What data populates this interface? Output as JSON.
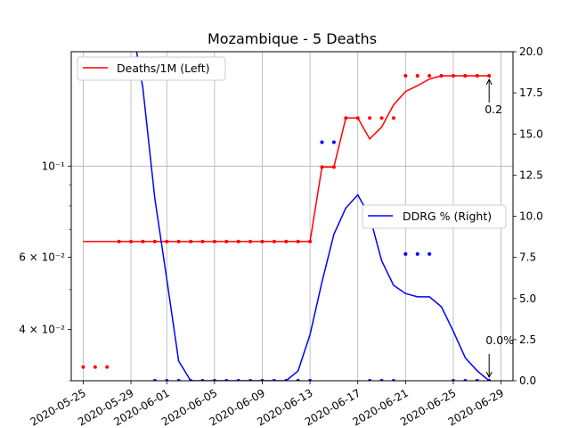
{
  "chart_data": {
    "type": "line",
    "title": "Mozambique - 5 Deaths",
    "x_dates": [
      "2020-05-25",
      "2020-05-26",
      "2020-05-27",
      "2020-05-28",
      "2020-05-29",
      "2020-05-30",
      "2020-05-31",
      "2020-06-01",
      "2020-06-02",
      "2020-06-03",
      "2020-06-04",
      "2020-06-05",
      "2020-06-06",
      "2020-06-07",
      "2020-06-08",
      "2020-06-09",
      "2020-06-10",
      "2020-06-11",
      "2020-06-12",
      "2020-06-13",
      "2020-06-14",
      "2020-06-15",
      "2020-06-16",
      "2020-06-17",
      "2020-06-18",
      "2020-06-19",
      "2020-06-20",
      "2020-06-21",
      "2020-06-22",
      "2020-06-23",
      "2020-06-24",
      "2020-06-25",
      "2020-06-26",
      "2020-06-27",
      "2020-06-28"
    ],
    "x_ticks": [
      "2020-05-25",
      "2020-05-29",
      "2020-06-01",
      "2020-06-05",
      "2020-06-09",
      "2020-06-13",
      "2020-06-17",
      "2020-06-21",
      "2020-06-25",
      "2020-06-29"
    ],
    "left_axis": {
      "scale": "log",
      "ylim": [
        0.03,
        0.19
      ],
      "tick_labels": [
        {
          "label": "4 × 10⁻²",
          "value": 0.04
        },
        {
          "label": "6 × 10⁻²",
          "value": 0.06
        },
        {
          "label": "10⁻¹",
          "value": 0.1
        }
      ]
    },
    "right_axis": {
      "scale": "linear",
      "ylim": [
        0,
        20
      ],
      "ticks": [
        "0.0",
        "2.5",
        "5.0",
        "7.5",
        "10.0",
        "12.5",
        "15.0",
        "17.5",
        "20.0"
      ]
    },
    "series": [
      {
        "name": "Deaths/1M (Left)",
        "axis": "left",
        "color": "#ff0000",
        "line_start_index": 0,
        "values": [
          0.0655,
          0.0655,
          0.0655,
          0.0655,
          0.0655,
          0.0655,
          0.0655,
          0.0655,
          0.0655,
          0.0655,
          0.0655,
          0.0655,
          0.0655,
          0.0655,
          0.0655,
          0.0655,
          0.0655,
          0.0655,
          0.0655,
          0.0655,
          0.0995,
          0.0995,
          0.131,
          0.131,
          0.1165,
          0.1245,
          0.141,
          0.152,
          0.157,
          0.163,
          0.166,
          0.166,
          0.166,
          0.166,
          0.166
        ],
        "points": [
          0.0324,
          0.0324,
          0.0324,
          0.0655,
          0.0655,
          0.0655,
          0.0655,
          0.0655,
          0.0655,
          0.0655,
          0.0655,
          0.0655,
          0.0655,
          0.0655,
          0.0655,
          0.0655,
          0.0655,
          0.0655,
          0.0655,
          0.0655,
          0.0995,
          0.0995,
          0.131,
          0.131,
          0.131,
          0.131,
          0.131,
          0.166,
          0.166,
          0.166,
          0.166,
          0.166,
          0.166,
          0.166,
          0.166
        ]
      },
      {
        "name": "DDRG % (Right)",
        "axis": "right",
        "color": "#0000ff",
        "line_start_index": 4,
        "values": [
          null,
          null,
          null,
          null,
          22.0,
          17.8,
          11.1,
          6.2,
          1.2,
          0.0,
          0.0,
          0.0,
          0.0,
          0.0,
          0.0,
          0.0,
          0.0,
          0.0,
          0.6,
          2.8,
          6.0,
          8.9,
          10.5,
          11.3,
          10.0,
          7.3,
          5.8,
          5.3,
          5.1,
          5.1,
          4.5,
          3.0,
          1.4,
          0.6,
          0.0
        ],
        "points": [
          null,
          null,
          null,
          null,
          null,
          null,
          0.0,
          0.0,
          0.0,
          0.0,
          0.0,
          0.0,
          0.0,
          0.0,
          0.0,
          0.0,
          0.0,
          0.0,
          0.0,
          0.0,
          14.5,
          14.5,
          null,
          null,
          0.0,
          0.0,
          0.0,
          7.7,
          7.7,
          7.7,
          null,
          0.0,
          0.0,
          0.0,
          0.0
        ]
      }
    ],
    "annotations": [
      {
        "text": "0.2",
        "series": "Deaths/1M (Left)",
        "index": 34
      },
      {
        "text": "0.0%",
        "series": "DDRG % (Right)",
        "index": 34
      }
    ],
    "grid": true,
    "legend_left_position": "upper-left",
    "legend_right_position": "center-right"
  }
}
